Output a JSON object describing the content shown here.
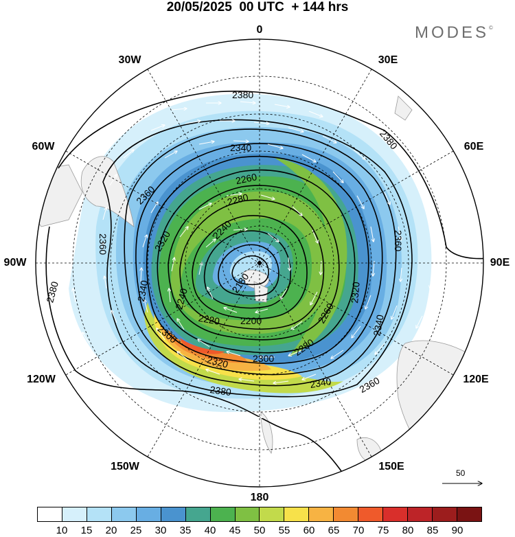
{
  "header": {
    "title": "20/05/2025  00 UTC  + 144 hrs",
    "brand": "MODES",
    "brand_mark": "©"
  },
  "map": {
    "projection": "polar stereographic (south pole)",
    "longitude_labels": [
      "0",
      "30E",
      "60E",
      "90E",
      "120E",
      "150E",
      "180",
      "150W",
      "120W",
      "90W",
      "60W",
      "30W"
    ],
    "contour_labels": [
      "2380",
      "2380",
      "2380",
      "2380",
      "2360",
      "2360",
      "2360",
      "2360",
      "2340",
      "2340",
      "2340",
      "2340",
      "2320",
      "2320",
      "2320",
      "2300",
      "2300",
      "2280",
      "2280",
      "2260",
      "2260",
      "2240",
      "2240",
      "2220",
      "2200",
      "2180"
    ],
    "wind_reference_label": "50",
    "colors": {
      "land": "#f0f0f0",
      "coast": "#9a9a9a",
      "contour": "#000000",
      "wind_vectors": "#ffffff"
    }
  },
  "colorbar": {
    "labels": [
      "10",
      "15",
      "20",
      "25",
      "30",
      "35",
      "40",
      "45",
      "50",
      "55",
      "60",
      "65",
      "70",
      "75",
      "80",
      "85",
      "90"
    ],
    "colors": [
      "#ffffff",
      "#d6f0fb",
      "#b4e2f7",
      "#8cc9ee",
      "#68aee3",
      "#4a93cf",
      "#45a68f",
      "#4cb24f",
      "#7fc043",
      "#c2da4b",
      "#f7e14a",
      "#f7b343",
      "#f28a32",
      "#ef5a2b",
      "#d92f2b",
      "#bd2428",
      "#9c1d1d",
      "#7a1313"
    ]
  }
}
